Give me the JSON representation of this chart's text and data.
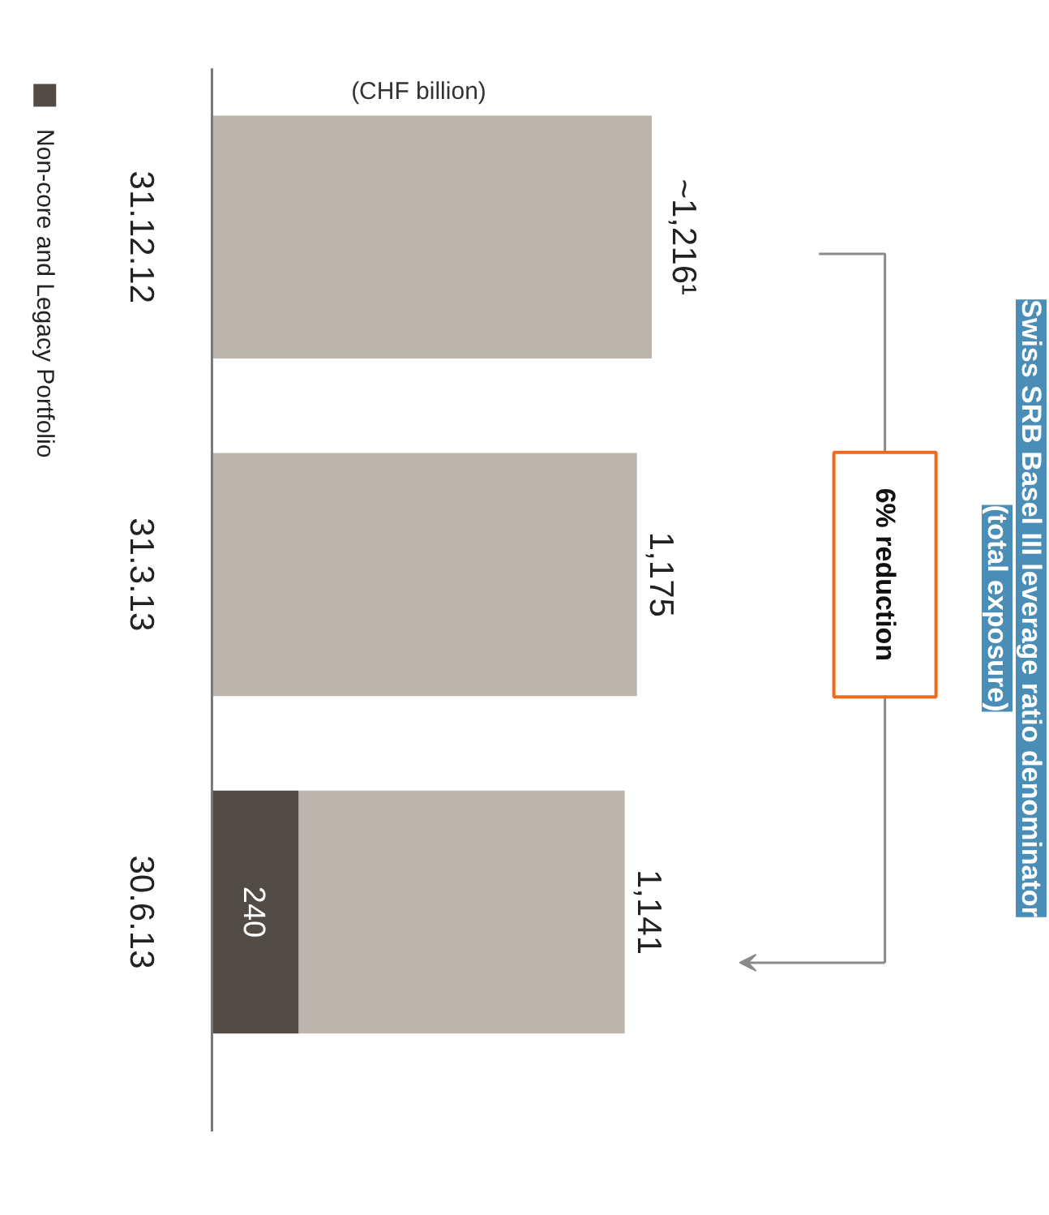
{
  "chart_data": {
    "type": "bar",
    "orientation": "horizontal",
    "stacked": true,
    "title": "Swiss SRB Basel III leverage ratio denominator",
    "subtitle": "(total exposure)",
    "categories": [
      "31.12.12",
      "31.3.13",
      "30.6.13"
    ],
    "series": [
      {
        "name": "Non-core and Legacy Portfolio",
        "color": "#534b45",
        "values": [
          null,
          null,
          240
        ],
        "value_labels": [
          null,
          null,
          "240"
        ]
      },
      {
        "color": "#bdb6ae",
        "values": [
          1216,
          1175,
          901
        ]
      }
    ],
    "totals": [
      "~1,216¹",
      "1,175",
      "1,141"
    ],
    "annotations": [
      "(CHF billion)",
      "6% reduction"
    ],
    "legend": "left"
  }
}
